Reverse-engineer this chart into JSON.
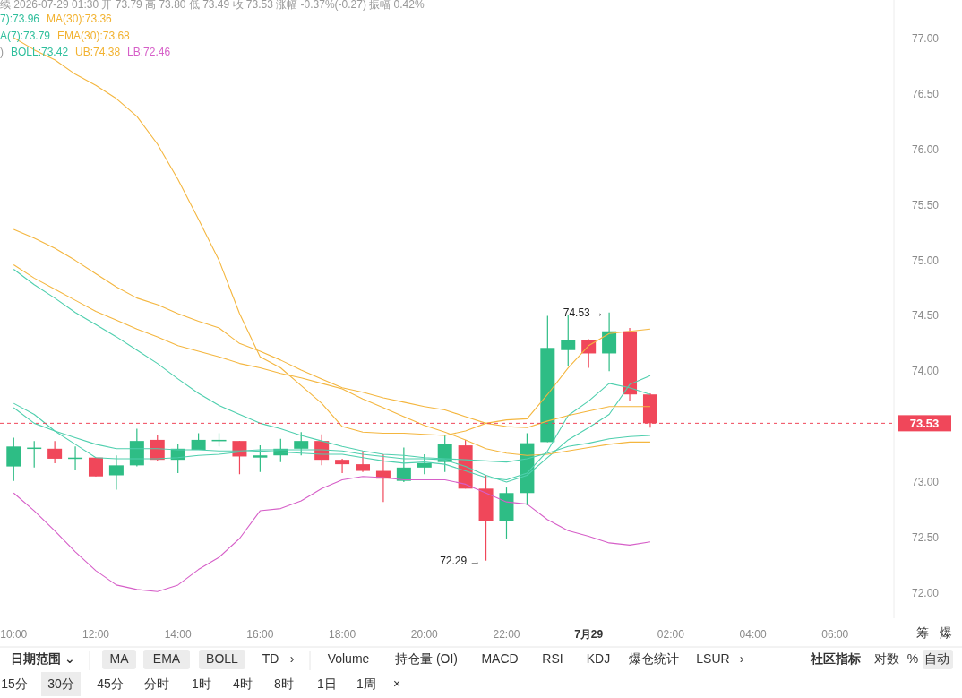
{
  "chart_data": {
    "type": "candlestick",
    "x": [
      "2026-07-28T10:00",
      "2026-07-28T10:30",
      "2026-07-28T11:00",
      "2026-07-28T11:30",
      "2026-07-28T12:00",
      "2026-07-28T12:30",
      "2026-07-28T13:00",
      "2026-07-28T13:30",
      "2026-07-28T14:00",
      "2026-07-28T14:30",
      "2026-07-28T15:00",
      "2026-07-28T15:30",
      "2026-07-28T16:00",
      "2026-07-28T16:30",
      "2026-07-28T17:00",
      "2026-07-28T17:30",
      "2026-07-28T18:00",
      "2026-07-28T18:30",
      "2026-07-28T19:00",
      "2026-07-28T19:30",
      "2026-07-28T20:00",
      "2026-07-28T20:30",
      "2026-07-28T21:00",
      "2026-07-28T21:30",
      "2026-07-28T22:00",
      "2026-07-28T22:30",
      "2026-07-28T23:00",
      "2026-07-28T23:30",
      "2026-07-29T00:00",
      "2026-07-29T00:30",
      "2026-07-29T01:00",
      "2026-07-29T01:30"
    ],
    "ohlc": [
      [
        73.14,
        73.4,
        73.01,
        73.32
      ],
      [
        73.3,
        73.37,
        73.13,
        73.31
      ],
      [
        73.3,
        73.37,
        73.17,
        73.21
      ],
      [
        73.21,
        73.32,
        73.11,
        73.22
      ],
      [
        73.22,
        73.22,
        73.05,
        73.05
      ],
      [
        73.06,
        73.24,
        72.93,
        73.15
      ],
      [
        73.15,
        73.48,
        73.14,
        73.37
      ],
      [
        73.38,
        73.42,
        73.19,
        73.2
      ],
      [
        73.2,
        73.34,
        73.08,
        73.3
      ],
      [
        73.29,
        73.44,
        73.29,
        73.38
      ],
      [
        73.37,
        73.44,
        73.32,
        73.38
      ],
      [
        73.37,
        73.37,
        73.07,
        73.23
      ],
      [
        73.22,
        73.33,
        73.09,
        73.24
      ],
      [
        73.24,
        73.39,
        73.18,
        73.3
      ],
      [
        73.3,
        73.45,
        73.24,
        73.37
      ],
      [
        73.37,
        73.43,
        73.15,
        73.2
      ],
      [
        73.2,
        73.21,
        73.08,
        73.16
      ],
      [
        73.16,
        73.28,
        73.09,
        73.1
      ],
      [
        73.1,
        73.25,
        72.82,
        73.03
      ],
      [
        73.01,
        73.31,
        73.0,
        73.13
      ],
      [
        73.13,
        73.25,
        73.07,
        73.17
      ],
      [
        73.18,
        73.42,
        73.09,
        73.34
      ],
      [
        73.33,
        73.38,
        72.94,
        72.94
      ],
      [
        72.94,
        73.06,
        72.29,
        72.65
      ],
      [
        72.65,
        72.95,
        72.49,
        72.9
      ],
      [
        72.9,
        73.44,
        72.79,
        73.35
      ],
      [
        73.36,
        74.5,
        73.36,
        74.21
      ],
      [
        74.19,
        74.51,
        74.05,
        74.28
      ],
      [
        74.28,
        74.29,
        74.03,
        74.16
      ],
      [
        74.16,
        74.53,
        74.0,
        74.36
      ],
      [
        74.36,
        74.39,
        73.73,
        73.79
      ],
      [
        73.79,
        73.8,
        73.49,
        73.53
      ]
    ],
    "colors": [
      "#2ebd85",
      "#2ebd85",
      "#f0475a",
      "#2ebd85",
      "#f0475a",
      "#2ebd85",
      "#2ebd85",
      "#f0475a",
      "#2ebd85",
      "#2ebd85",
      "#2ebd85",
      "#f0475a",
      "#2ebd85",
      "#2ebd85",
      "#2ebd85",
      "#f0475a",
      "#f0475a",
      "#f0475a",
      "#f0475a",
      "#2ebd85",
      "#2ebd85",
      "#2ebd85",
      "#f0475a",
      "#f0475a",
      "#2ebd85",
      "#2ebd85",
      "#2ebd85",
      "#2ebd85",
      "#f0475a",
      "#2ebd85",
      "#f0475a",
      "#f0475a"
    ],
    "series": [
      {
        "type": "line",
        "color": "#4fcfae",
        "values": [
          73.67,
          73.53,
          73.46,
          73.4,
          73.34,
          73.3,
          73.3,
          73.3,
          73.29,
          73.29,
          73.28,
          73.28,
          73.29,
          73.29,
          73.29,
          73.29,
          73.28,
          73.25,
          73.23,
          73.21,
          73.21,
          73.2,
          73.14,
          73.06,
          73.0,
          73.06,
          73.22,
          73.38,
          73.49,
          73.61,
          73.88,
          73.96
        ]
      },
      {
        "type": "line",
        "color": "#f4b63f",
        "values": [
          74.96,
          74.84,
          74.74,
          74.64,
          74.54,
          74.46,
          74.38,
          74.31,
          74.23,
          74.18,
          74.13,
          74.07,
          74.03,
          73.98,
          73.94,
          73.89,
          73.84,
          73.75,
          73.67,
          73.59,
          73.51,
          73.45,
          73.38,
          73.3,
          73.26,
          73.24,
          73.25,
          73.28,
          73.31,
          73.34,
          73.36,
          73.36
        ]
      },
      {
        "type": "line",
        "color": "#4fcfae",
        "values": [
          73.71,
          73.61,
          73.46,
          73.34,
          73.22,
          73.21,
          73.21,
          73.21,
          73.22,
          73.24,
          73.25,
          73.27,
          73.28,
          73.27,
          73.26,
          73.25,
          73.25,
          73.22,
          73.19,
          73.17,
          73.18,
          73.16,
          73.1,
          73.04,
          73.02,
          73.08,
          73.28,
          73.6,
          73.73,
          73.89,
          73.85,
          73.79
        ]
      },
      {
        "type": "line",
        "color": "#f4b63f",
        "values": [
          75.28,
          75.2,
          75.11,
          75.0,
          74.88,
          74.76,
          74.66,
          74.6,
          74.52,
          74.45,
          74.39,
          74.25,
          74.18,
          74.1,
          74.01,
          73.93,
          73.85,
          73.81,
          73.76,
          73.72,
          73.68,
          73.65,
          73.59,
          73.53,
          73.5,
          73.49,
          73.55,
          73.6,
          73.64,
          73.68,
          73.68,
          73.68
        ]
      },
      {
        "type": "line",
        "color": "#4fcfae",
        "values": [
          74.92,
          74.78,
          74.66,
          74.53,
          74.42,
          74.31,
          74.19,
          74.07,
          73.93,
          73.8,
          73.69,
          73.61,
          73.53,
          73.48,
          73.42,
          73.37,
          73.32,
          73.28,
          73.25,
          73.24,
          73.22,
          73.21,
          73.2,
          73.19,
          73.18,
          73.21,
          73.26,
          73.32,
          73.35,
          73.39,
          73.41,
          73.42
        ]
      },
      {
        "type": "line",
        "color": "#f4b63f",
        "values": [
          77.01,
          76.9,
          76.81,
          76.68,
          76.58,
          76.46,
          76.3,
          76.05,
          75.73,
          75.37,
          75.0,
          74.52,
          74.13,
          74.03,
          73.87,
          73.71,
          73.5,
          73.45,
          73.44,
          73.44,
          73.43,
          73.42,
          73.46,
          73.53,
          73.56,
          73.57,
          73.79,
          74.03,
          74.23,
          74.34,
          74.36,
          74.38
        ]
      },
      {
        "type": "line",
        "color": "#d65fc8",
        "values": [
          72.9,
          72.74,
          72.56,
          72.37,
          72.2,
          72.07,
          72.03,
          72.01,
          72.07,
          72.21,
          72.32,
          72.49,
          72.74,
          72.76,
          72.83,
          72.94,
          73.02,
          73.05,
          73.04,
          73.02,
          73.02,
          73.02,
          72.98,
          72.9,
          72.82,
          72.8,
          72.66,
          72.56,
          72.51,
          72.45,
          72.43,
          72.46
        ]
      }
    ],
    "xlim": [
      "2026-07-28T09:40",
      "2026-07-29T07:26"
    ],
    "xticks": [
      {
        "value": "2026-07-28T10:00",
        "label": "10:00"
      },
      {
        "value": "2026-07-28T12:00",
        "label": "12:00"
      },
      {
        "value": "2026-07-28T14:00",
        "label": "14:00"
      },
      {
        "value": "2026-07-28T16:00",
        "label": "16:00"
      },
      {
        "value": "2026-07-28T18:00",
        "label": "18:00"
      },
      {
        "value": "2026-07-28T20:00",
        "label": "20:00"
      },
      {
        "value": "2026-07-28T22:00",
        "label": "22:00"
      },
      {
        "value": "2026-07-29T00:00",
        "label": "7月29"
      },
      {
        "value": "2026-07-29T02:00",
        "label": "02:00"
      },
      {
        "value": "2026-07-29T04:00",
        "label": "04:00"
      },
      {
        "value": "2026-07-29T06:00",
        "label": "06:00"
      }
    ],
    "ylim": [
      71.77,
      77.35
    ],
    "yticks": [
      {
        "value": 72,
        "label": "72.00"
      },
      {
        "value": 72.5,
        "label": "72.50"
      },
      {
        "value": 73,
        "label": "73.00"
      },
      {
        "value": 74,
        "label": "74.00"
      },
      {
        "value": 74.5,
        "label": "74.50"
      },
      {
        "value": 75,
        "label": "75.00"
      },
      {
        "value": 75.5,
        "label": "75.50"
      },
      {
        "value": 76,
        "label": "76.00"
      },
      {
        "value": 76.5,
        "label": "76.50"
      },
      {
        "value": 77,
        "label": "77.00"
      }
    ],
    "ref_lines": [
      {
        "axis": "y",
        "value": 73.53,
        "label": "73.53",
        "color": "#f0475a",
        "line_style": "dashed"
      }
    ],
    "grid": false,
    "annotations": [
      "续 2026-07-29 01:30 开 73.79 高 73.80 低 73.49 收 73.53 涨幅 -0.37%(-0.27) 振幅 0.42%",
      "7):73.96",
      "MA(30):73.36",
      "A(7):73.79",
      "EMA(30):73.68",
      ")",
      "BOLL:73.42",
      "UB:74.38",
      "LB:72.46",
      {
        "text": "74.53 →",
        "x": "2026-07-29T00:30",
        "y": 74.53
      },
      {
        "text": "72.29 →",
        "x": "2026-07-28T21:30",
        "y": 72.29
      },
      "筹",
      "爆",
      "日期范围 ⌄",
      "MA",
      "EMA",
      "BOLL",
      "TD",
      "›",
      "Volume",
      "持仓量 (OI)",
      "MACD",
      "RSI",
      "KDJ",
      "爆仓统计",
      "LSUR",
      "›",
      "社区指标",
      "对数",
      "%",
      "自动",
      "15分",
      "30分",
      "45分",
      "分时",
      "1时",
      "4时",
      "8时",
      "1日",
      "1周",
      "×"
    ]
  }
}
